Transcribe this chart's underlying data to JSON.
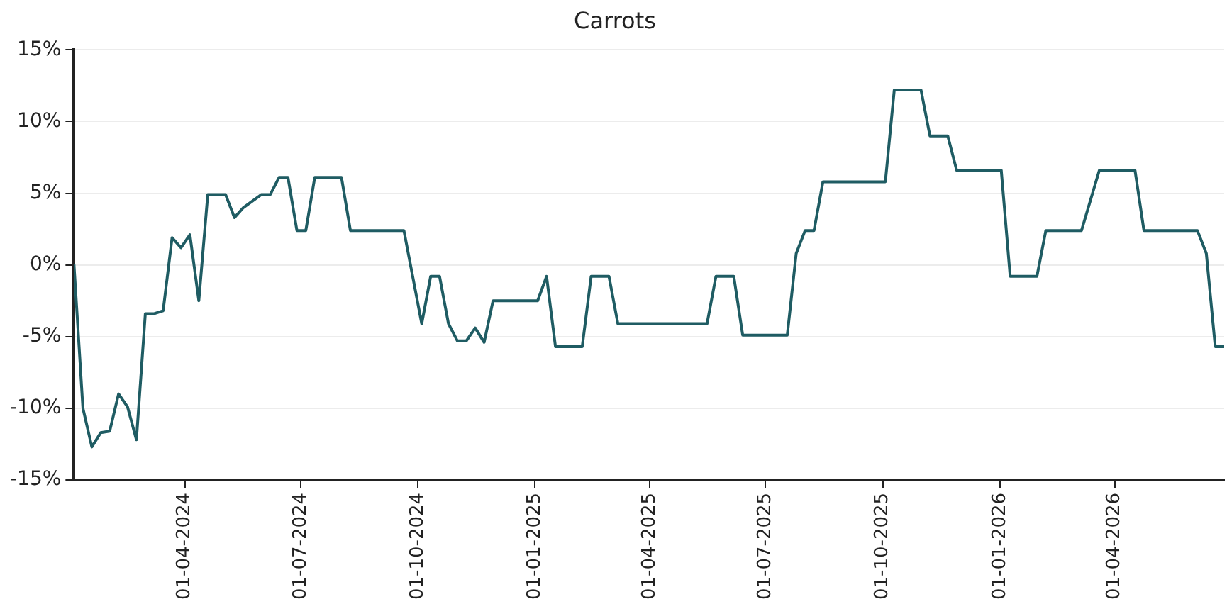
{
  "chart_data": {
    "type": "line",
    "title": "Carrots",
    "x": [
      "2024-01-05",
      "2024-01-12",
      "2024-01-19",
      "2024-01-26",
      "2024-02-02",
      "2024-02-09",
      "2024-02-16",
      "2024-02-23",
      "2024-03-01",
      "2024-03-08",
      "2024-03-15",
      "2024-03-22",
      "2024-03-29",
      "2024-04-05",
      "2024-04-12",
      "2024-04-19",
      "2024-05-03",
      "2024-05-10",
      "2024-05-17",
      "2024-05-31",
      "2024-06-07",
      "2024-06-14",
      "2024-06-21",
      "2024-06-28",
      "2024-07-05",
      "2024-07-12",
      "2024-08-02",
      "2024-08-09",
      "2024-09-20",
      "2024-10-04",
      "2024-10-11",
      "2024-10-18",
      "2024-10-25",
      "2024-11-01",
      "2024-11-08",
      "2024-11-15",
      "2024-11-22",
      "2024-11-29",
      "2025-01-03",
      "2025-01-10",
      "2025-01-17",
      "2025-02-07",
      "2025-02-14",
      "2025-02-28",
      "2025-03-07",
      "2025-05-16",
      "2025-05-23",
      "2025-06-06",
      "2025-06-13",
      "2025-07-18",
      "2025-07-25",
      "2025-08-01",
      "2025-08-08",
      "2025-08-15",
      "2025-10-03",
      "2025-10-10",
      "2025-10-31",
      "2025-11-07",
      "2025-11-21",
      "2025-11-28",
      "2026-01-02",
      "2026-01-09",
      "2026-01-30",
      "2026-02-06",
      "2026-03-06",
      "2026-03-20",
      "2026-04-17",
      "2026-04-24",
      "2026-06-05",
      "2026-06-12",
      "2026-06-19",
      "2026-06-26"
    ],
    "series": [
      {
        "color": "#1f5c63",
        "values": [
          0,
          -10,
          -12.7,
          -11.7,
          -11.6,
          -9,
          -9.9,
          -12.2,
          -3.4,
          -3.4,
          -3.2,
          1.9,
          1.2,
          2.1,
          -2.5,
          4.9,
          4.9,
          3.3,
          4.0,
          4.9,
          4.9,
          6.1,
          6.1,
          2.4,
          2.4,
          6.1,
          6.1,
          2.4,
          2.4,
          -4.1,
          -0.8,
          -0.8,
          -4.1,
          -5.3,
          -5.3,
          -4.4,
          -5.4,
          -2.5,
          -2.5,
          -0.8,
          -5.7,
          -5.7,
          -0.8,
          -0.8,
          -4.1,
          -4.1,
          -0.8,
          -0.8,
          -4.9,
          -4.9,
          0.8,
          2.4,
          2.4,
          5.8,
          5.8,
          12.2,
          12.2,
          9.0,
          9.0,
          6.6,
          6.6,
          -0.8,
          -0.8,
          2.4,
          2.4,
          6.6,
          6.6,
          2.4,
          2.4,
          0.8,
          -5.7,
          -5.7
        ]
      }
    ],
    "xlim": [
      "2024-01-05",
      "2026-06-26"
    ],
    "xticks": [
      {
        "value": "2024-04-01",
        "label": "01-04-2024"
      },
      {
        "value": "2024-07-01",
        "label": "01-07-2024"
      },
      {
        "value": "2024-10-01",
        "label": "01-10-2024"
      },
      {
        "value": "2025-01-01",
        "label": "01-01-2025"
      },
      {
        "value": "2025-04-01",
        "label": "01-04-2025"
      },
      {
        "value": "2025-07-01",
        "label": "01-07-2025"
      },
      {
        "value": "2025-10-01",
        "label": "01-10-2025"
      },
      {
        "value": "2026-01-01",
        "label": "01-01-2026"
      },
      {
        "value": "2026-04-01",
        "label": "01-04-2026"
      }
    ],
    "ylim": [
      -15,
      15
    ],
    "yticks": [
      {
        "value": -15,
        "label": "-15%"
      },
      {
        "value": -10,
        "label": "-10%"
      },
      {
        "value": -5,
        "label": "-5%"
      },
      {
        "value": 0,
        "label": "0%"
      },
      {
        "value": 5,
        "label": "5%"
      },
      {
        "value": 10,
        "label": "10%"
      },
      {
        "value": 15,
        "label": "15%"
      }
    ],
    "grid": "y",
    "marker": "none",
    "line_style": "solid",
    "legend": false
  }
}
